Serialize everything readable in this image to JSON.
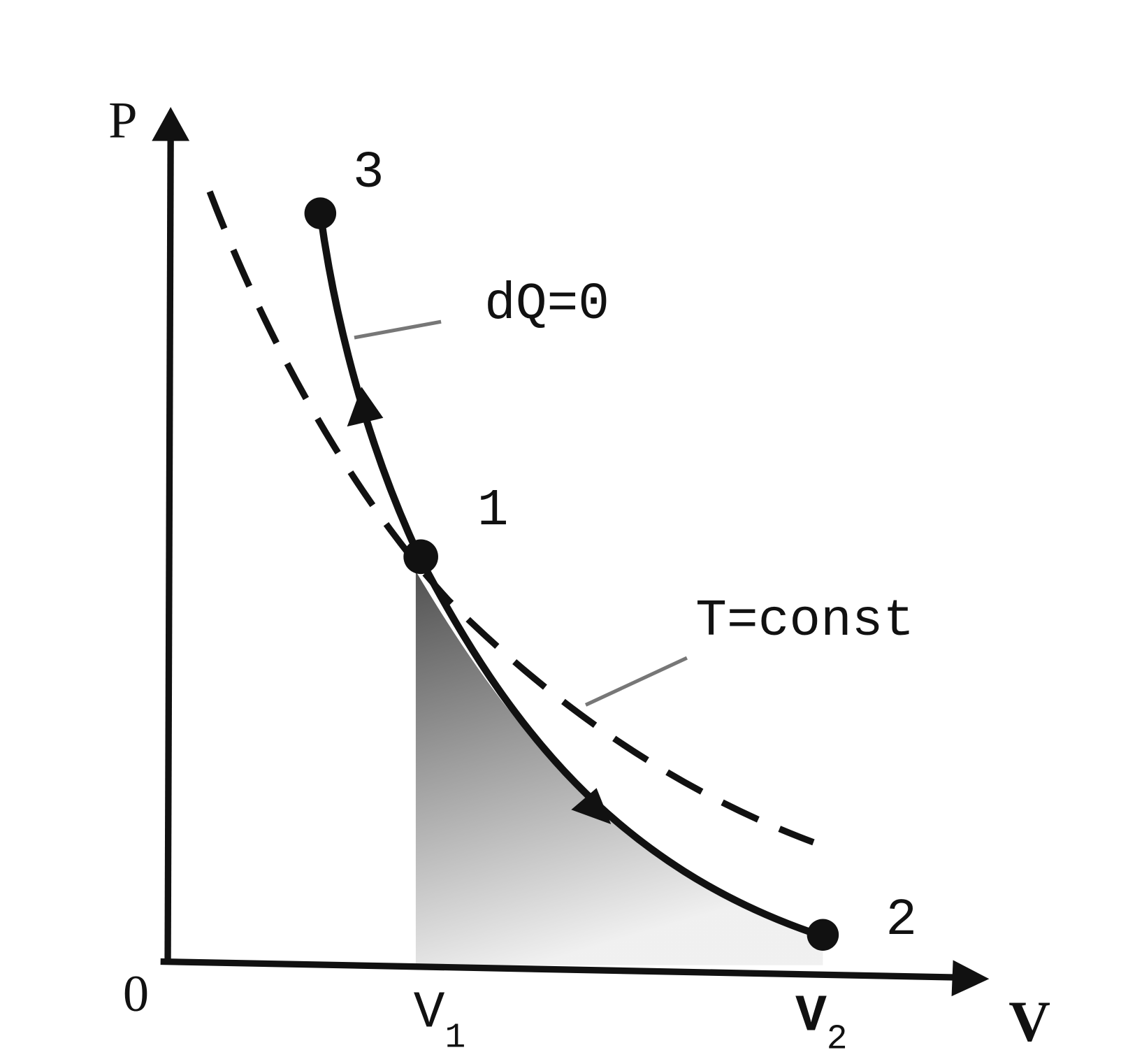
{
  "axes": {
    "y_label": "P",
    "x_label": "V",
    "origin": "0"
  },
  "points": [
    {
      "label": "3"
    },
    {
      "label": "1"
    },
    {
      "label": "2"
    }
  ],
  "curves": [
    {
      "label": "dQ=0"
    },
    {
      "label": "T=const"
    }
  ],
  "volumes": [
    {
      "main": "V",
      "sub": "1"
    },
    {
      "main": "V",
      "sub": "2"
    }
  ]
}
